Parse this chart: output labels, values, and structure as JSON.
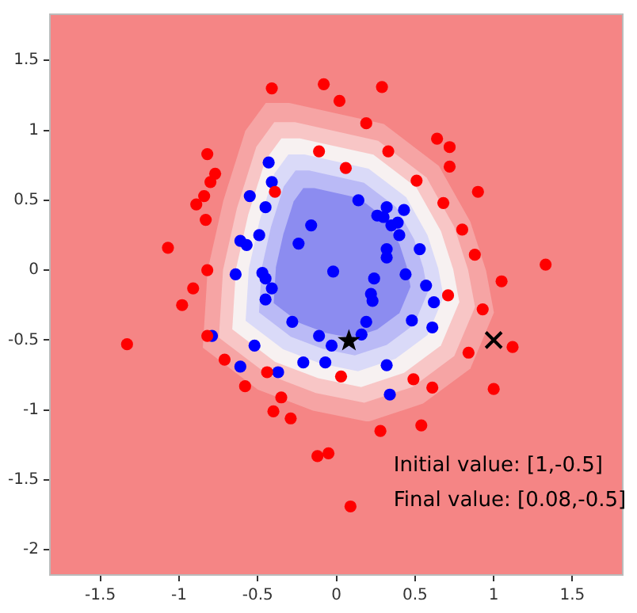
{
  "chart_data": {
    "type": "scatter",
    "marker": "circle",
    "grid": false,
    "legend": false,
    "xlim": [
      -1.82,
      1.82
    ],
    "ylim": [
      -2.18,
      1.83
    ],
    "xticks": [
      -1.5,
      -1.0,
      -0.5,
      0.0,
      0.5,
      1.0,
      1.5
    ],
    "yticks": [
      -2.0,
      -1.5,
      -1.0,
      -0.5,
      0.0,
      0.5,
      1.0,
      1.5
    ],
    "annotations": [
      "Initial value: [1,-0.5]",
      "Final value: [0.08,-0.5]"
    ],
    "series": [
      {
        "color": "#ff0000",
        "x": [
          -0.41,
          -0.08,
          0.02,
          -0.11,
          -0.82,
          -0.77,
          -0.8,
          -0.84,
          -0.89,
          -0.83,
          -1.07,
          -0.39,
          0.06,
          -0.82,
          -0.91,
          0.29,
          0.19,
          0.64,
          0.72,
          0.33,
          0.72,
          0.51,
          0.9,
          0.68,
          0.8,
          0.88,
          1.33,
          1.05,
          -0.98,
          -1.33,
          -0.82,
          -0.71,
          -0.44,
          -0.58,
          -0.35,
          -0.4,
          -0.29,
          -0.12,
          -0.05,
          0.03,
          0.71,
          0.93,
          0.84,
          1.12,
          0.49,
          0.61,
          1.0,
          0.28,
          0.54,
          0.09
        ],
        "values": [
          1.3,
          1.33,
          1.21,
          0.85,
          0.83,
          0.69,
          0.63,
          0.53,
          0.47,
          0.36,
          0.16,
          0.56,
          0.73,
          0.0,
          -0.13,
          1.31,
          1.05,
          0.94,
          0.88,
          0.85,
          0.74,
          0.64,
          0.56,
          0.48,
          0.29,
          0.11,
          0.04,
          -0.08,
          -0.25,
          -0.53,
          -0.47,
          -0.64,
          -0.73,
          -0.83,
          -0.91,
          -1.01,
          -1.06,
          -1.33,
          -1.31,
          -0.76,
          -0.18,
          -0.28,
          -0.59,
          -0.55,
          -0.78,
          -0.84,
          -0.85,
          -1.15,
          -1.11,
          -1.69
        ]
      },
      {
        "color": "#0000ff",
        "x": [
          -0.43,
          -0.41,
          -0.55,
          -0.45,
          -0.16,
          -0.24,
          -0.49,
          -0.61,
          -0.57,
          -0.02,
          -0.64,
          -0.47,
          -0.45,
          -0.41,
          0.14,
          0.32,
          0.26,
          0.3,
          0.43,
          0.35,
          0.39,
          0.4,
          0.53,
          0.32,
          0.32,
          0.24,
          0.44,
          0.57,
          -0.45,
          -0.28,
          -0.11,
          -0.03,
          -0.79,
          -0.52,
          -0.21,
          -0.07,
          -0.61,
          -0.37,
          0.22,
          0.23,
          0.62,
          0.19,
          0.48,
          0.61,
          0.16,
          0.32,
          0.34
        ],
        "values": [
          0.77,
          0.63,
          0.53,
          0.45,
          0.32,
          0.19,
          0.25,
          0.21,
          0.18,
          -0.01,
          -0.03,
          -0.02,
          -0.06,
          -0.13,
          0.5,
          0.45,
          0.39,
          0.38,
          0.43,
          0.32,
          0.34,
          0.25,
          0.15,
          0.15,
          0.09,
          -0.06,
          -0.03,
          -0.11,
          -0.21,
          -0.37,
          -0.47,
          -0.54,
          -0.47,
          -0.54,
          -0.66,
          -0.66,
          -0.69,
          -0.73,
          -0.17,
          -0.22,
          -0.23,
          -0.37,
          -0.36,
          -0.41,
          -0.46,
          -0.68,
          -0.89
        ]
      },
      {
        "color": "#000000",
        "marker": "star",
        "x": [
          0.08
        ],
        "values": [
          -0.5
        ]
      },
      {
        "color": "#000000",
        "marker": "cross",
        "x": [
          1.0
        ],
        "values": [
          -0.5
        ]
      }
    ]
  }
}
